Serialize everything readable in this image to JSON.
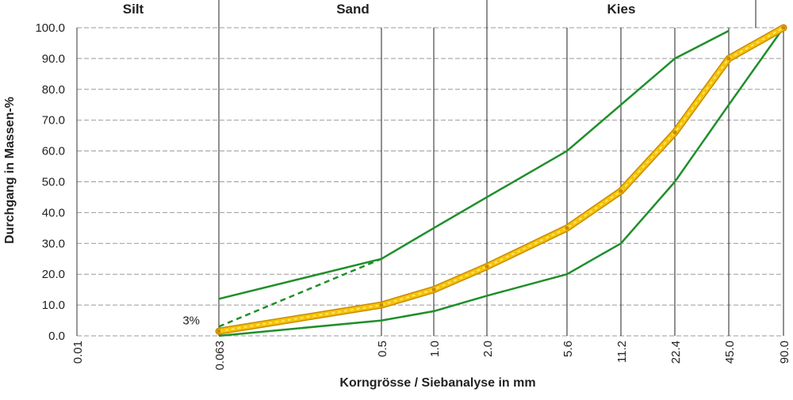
{
  "chart_data": {
    "type": "line",
    "title": "",
    "xlabel": "Korngrösse / Siebanalyse in mm",
    "ylabel": "Durchgang in Massen-%",
    "ylim": [
      0,
      100
    ],
    "y_ticks": [
      "0.0",
      "10.0",
      "20.0",
      "30.0",
      "40.0",
      "50.0",
      "60.0",
      "70.0",
      "80.0",
      "90.0",
      "100.0"
    ],
    "x_ticks": [
      "0.01",
      "0.063",
      "0.5",
      "1.0",
      "2.0",
      "5.6",
      "11.2",
      "22.4",
      "45.0",
      "90.0"
    ],
    "x_scale": "log",
    "grid": true,
    "zones": [
      {
        "label": "Silt",
        "from": "0.01",
        "to": "0.063"
      },
      {
        "label": "Sand",
        "from": "0.063",
        "to": "2.0"
      },
      {
        "label": "Kies",
        "from": "2.0",
        "to": "63"
      }
    ],
    "series": [
      {
        "style": "upper-limit",
        "color": "#1f8f2a",
        "x": [
          0.063,
          0.5,
          1.0,
          2.0,
          5.6,
          11.2,
          22.4,
          45.0
        ],
        "y": [
          12,
          25,
          35,
          45,
          60,
          75,
          90,
          99
        ]
      },
      {
        "style": "lower-limit",
        "color": "#1f8f2a",
        "x": [
          0.063,
          0.5,
          1.0,
          2.0,
          5.6,
          11.2,
          22.4,
          45.0,
          90.0
        ],
        "y": [
          0,
          5,
          8,
          13,
          20,
          30,
          50,
          75,
          100
        ]
      },
      {
        "style": "dashed-limit",
        "color": "#1f8f2a",
        "x": [
          0.063,
          0.5
        ],
        "y": [
          3,
          25
        ]
      },
      {
        "style": "sieve-curve",
        "color": "#f5c400",
        "x": [
          0.063,
          0.5,
          1.0,
          2.0,
          5.6,
          11.2,
          22.4,
          45.0,
          90.0
        ],
        "y": [
          1.5,
          10,
          15,
          22.5,
          35,
          47,
          66,
          90,
          100
        ]
      }
    ],
    "annotations": [
      {
        "text": "3%",
        "x": 0.063,
        "y": 3
      }
    ]
  }
}
